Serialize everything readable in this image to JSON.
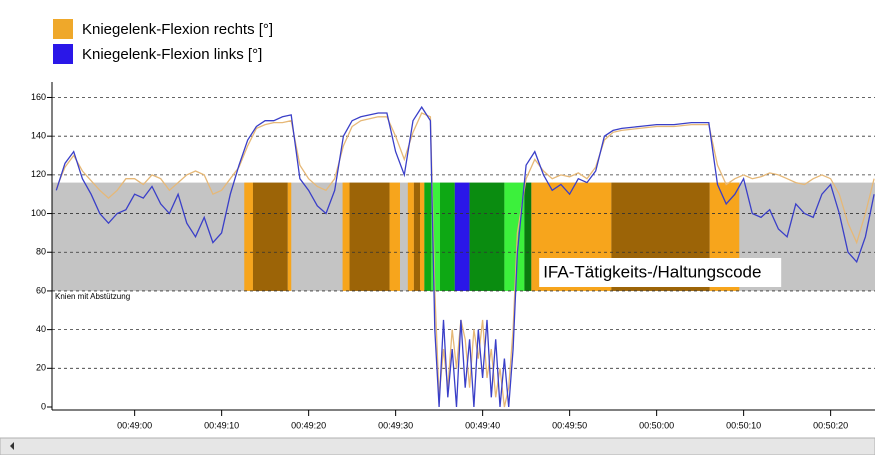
{
  "chart_data": {
    "type": "line",
    "legend": "top-left",
    "grid": true,
    "xlim": [
      2930.5,
      3025.1
    ],
    "xticks": [
      {
        "value": 2940,
        "label": "00:49:00"
      },
      {
        "value": 2950,
        "label": "00:49:10"
      },
      {
        "value": 2960,
        "label": "00:49:20"
      },
      {
        "value": 2970,
        "label": "00:49:30"
      },
      {
        "value": 2980,
        "label": "00:49:40"
      },
      {
        "value": 2990,
        "label": "00:49:50"
      },
      {
        "value": 3000,
        "label": "00:50:00"
      },
      {
        "value": 3010,
        "label": "00:50:10"
      },
      {
        "value": 3020,
        "label": "00:50:20"
      }
    ],
    "ylim": [
      0,
      168
    ],
    "yticks": [
      0,
      20,
      40,
      60,
      80,
      100,
      120,
      140,
      160
    ],
    "x": [
      2931,
      2932,
      2933,
      2934,
      2935,
      2936,
      2937,
      2938,
      2939,
      2940,
      2941,
      2942,
      2943,
      2944,
      2945,
      2946,
      2947,
      2948,
      2949,
      2950,
      2951,
      2952,
      2953,
      2954,
      2955,
      2956,
      2957,
      2958,
      2959,
      2960,
      2961,
      2962,
      2963,
      2964,
      2965,
      2966,
      2967,
      2968,
      2969,
      2970,
      2971,
      2972,
      2973,
      2974,
      2974.5,
      2975,
      2975.5,
      2976,
      2976.5,
      2977,
      2977.5,
      2978,
      2978.5,
      2979,
      2979.5,
      2980,
      2980.5,
      2981,
      2981.5,
      2982,
      2982.5,
      2983,
      2983.5,
      2984,
      2985,
      2986,
      2987,
      2988,
      2989,
      2990,
      2991,
      2992,
      2993,
      2994,
      2995,
      2996,
      2998,
      3000,
      3002,
      3004,
      3006,
      3007,
      3008,
      3009,
      3010,
      3011,
      3012,
      3013,
      3014,
      3015,
      3016,
      3017,
      3018,
      3019,
      3020,
      3021,
      3022,
      3023,
      3024,
      3025
    ],
    "series": [
      {
        "name": "Kniegelenk-Flexion rechts [°]",
        "color": "#efa82a",
        "line_color": "#e6b877",
        "values": [
          113,
          124,
          130,
          122,
          117,
          112,
          108,
          112,
          118,
          118,
          115,
          120,
          118,
          112,
          116,
          120,
          122,
          120,
          110,
          112,
          118,
          124,
          135,
          144,
          146,
          147,
          147,
          148,
          125,
          118,
          114,
          112,
          118,
          135,
          145,
          148,
          149,
          150,
          150,
          140,
          128,
          142,
          152,
          150,
          60,
          5,
          30,
          10,
          40,
          20,
          45,
          35,
          10,
          40,
          25,
          45,
          15,
          30,
          5,
          20,
          0,
          10,
          40,
          90,
          118,
          128,
          122,
          118,
          120,
          119,
          121,
          118,
          124,
          138,
          142,
          143,
          144,
          145,
          145,
          146,
          146,
          125,
          115,
          118,
          120,
          118,
          119,
          121,
          120,
          118,
          116,
          115,
          118,
          120,
          118,
          110,
          95,
          85,
          100,
          118
        ]
      },
      {
        "name": "Kniegelenk-Flexion links [°]",
        "color": "#2a17e8",
        "line_color": "#3a3fc8",
        "values": [
          112,
          126,
          132,
          118,
          110,
          100,
          95,
          100,
          102,
          110,
          108,
          114,
          105,
          100,
          110,
          95,
          88,
          98,
          85,
          90,
          110,
          125,
          138,
          145,
          148,
          148,
          150,
          151,
          118,
          112,
          104,
          100,
          112,
          140,
          148,
          150,
          151,
          152,
          152,
          132,
          120,
          148,
          155,
          148,
          40,
          0,
          45,
          5,
          30,
          0,
          45,
          10,
          35,
          0,
          40,
          15,
          45,
          5,
          35,
          0,
          25,
          0,
          30,
          80,
          125,
          132,
          120,
          112,
          115,
          110,
          118,
          116,
          122,
          140,
          143,
          144,
          145,
          146,
          146,
          147,
          147,
          115,
          105,
          110,
          118,
          100,
          98,
          102,
          92,
          88,
          105,
          100,
          98,
          110,
          115,
          100,
          80,
          75,
          88,
          110
        ]
      }
    ],
    "code_band": {
      "label": "IFA-Tätigkeits-/Haltungscode",
      "level_label": "Knien mit Abstützung",
      "range": [
        60,
        116
      ],
      "color": "#c4c4c4",
      "segments": [
        {
          "start": 2952.6,
          "end": 2953.6,
          "color": "#f7a51c"
        },
        {
          "start": 2953.6,
          "end": 2957.6,
          "color": "#9c6407"
        },
        {
          "start": 2957.6,
          "end": 2958.0,
          "color": "#f7a51c"
        },
        {
          "start": 2963.9,
          "end": 2964.7,
          "color": "#f7a51c"
        },
        {
          "start": 2964.7,
          "end": 2969.3,
          "color": "#9c6407"
        },
        {
          "start": 2969.3,
          "end": 2970.5,
          "color": "#f7a51c"
        },
        {
          "start": 2971.4,
          "end": 2972.1,
          "color": "#f7a51c"
        },
        {
          "start": 2972.1,
          "end": 2972.8,
          "color": "#9c6407"
        },
        {
          "start": 2972.8,
          "end": 2973.3,
          "color": "#f7a51c"
        },
        {
          "start": 2973.3,
          "end": 2974.1,
          "color": "#0ea814"
        },
        {
          "start": 2974.1,
          "end": 2975.1,
          "color": "#3cf03c"
        },
        {
          "start": 2975.1,
          "end": 2976.8,
          "color": "#0ea814"
        },
        {
          "start": 2976.8,
          "end": 2978.5,
          "color": "#2a17e8"
        },
        {
          "start": 2978.5,
          "end": 2982.5,
          "color": "#0a8c10"
        },
        {
          "start": 2982.5,
          "end": 2984.8,
          "color": "#3cf03c"
        },
        {
          "start": 2984.8,
          "end": 2985.6,
          "color": "#0a7a0e"
        },
        {
          "start": 2985.6,
          "end": 2994.8,
          "color": "#f7a51c"
        },
        {
          "start": 2994.8,
          "end": 3006.1,
          "color": "#9c6407"
        },
        {
          "start": 3006.1,
          "end": 3009.5,
          "color": "#f7a51c"
        }
      ]
    }
  }
}
